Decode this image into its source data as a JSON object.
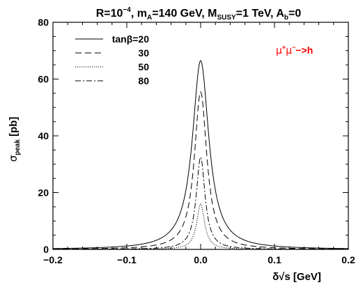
{
  "chart_data": {
    "type": "line",
    "title_parts": {
      "r": "R=10",
      "r_exp": "−4",
      "ma": ", m",
      "ma_sub": "A",
      "ma_val": "=140 GeV, M",
      "msusy_sub": "SUSY",
      "msusy_val": "=1 TeV, A",
      "ab_sub": "b",
      "ab_val": "=0"
    },
    "xlabel": "δ√s [GeV]",
    "ylabel_main": "σ",
    "ylabel_sub": "peak",
    "ylabel_unit": "[pb]",
    "xlim": [
      -0.2,
      0.2
    ],
    "ylim": [
      0,
      80
    ],
    "xticks": [
      -0.2,
      -0.1,
      0.0,
      0.1,
      0.2
    ],
    "xtick_labels": [
      "−0.2",
      "−0.1",
      "0.0",
      "0.1",
      "0.2"
    ],
    "yticks": [
      0,
      20,
      40,
      60,
      80
    ],
    "ytick_labels": [
      "0",
      "20",
      "40",
      "60",
      "80"
    ],
    "legend_position": "top-left",
    "legend_title": "tanβ=",
    "annotation": {
      "text_mu": "μ",
      "sup1": "+",
      "text_mu2": "μ",
      "sup2": "−",
      "rest": "−>h",
      "color": "#ff0000"
    },
    "series": [
      {
        "name": "20",
        "legend_label": "tanβ=20",
        "dash": "solid",
        "peak": 66.5,
        "width": 0.0135,
        "tail": 0.02
      },
      {
        "name": "30",
        "legend_label": "30",
        "dash": "dashed",
        "peak": 55.5,
        "width": 0.0102,
        "tail": 0.02
      },
      {
        "name": "50",
        "legend_label": "50",
        "dash": "dotted",
        "peak": 16.0,
        "width": 0.0065,
        "tail": 0.02
      },
      {
        "name": "80",
        "legend_label": "80",
        "dash": "dashdot",
        "peak": 32.5,
        "width": 0.0072,
        "tail": 0.02
      }
    ]
  }
}
